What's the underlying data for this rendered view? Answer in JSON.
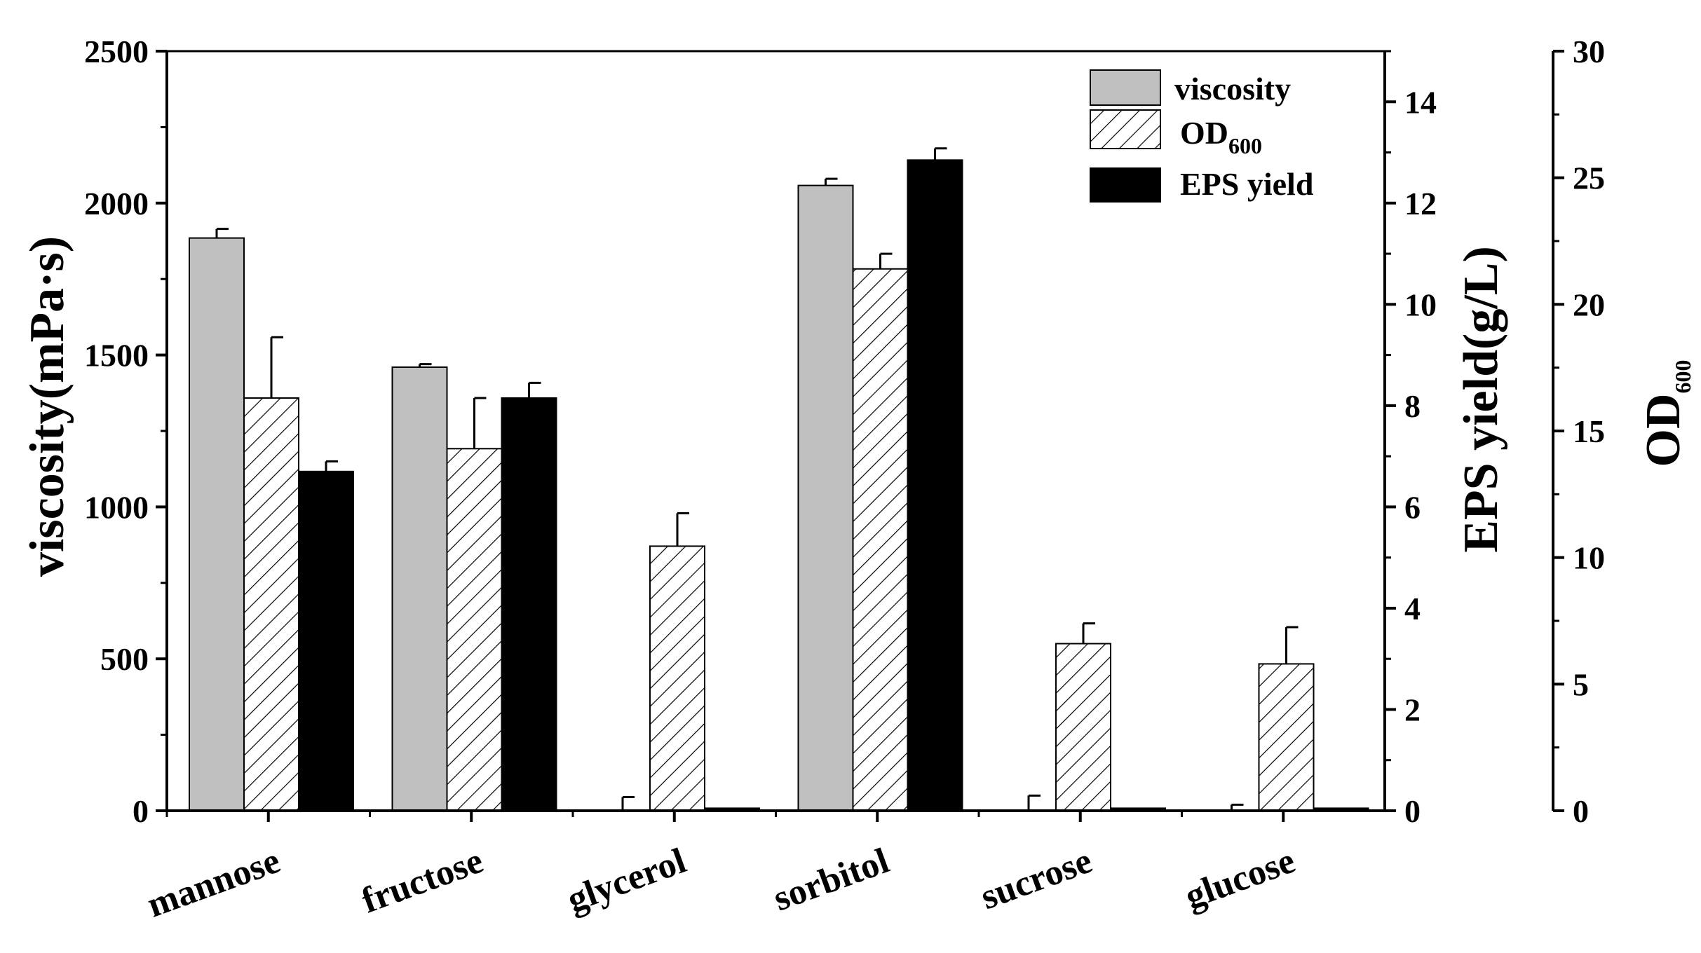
{
  "chart_data": {
    "type": "bar",
    "title": "",
    "categories": [
      "mannose",
      "fructose",
      "glycerol",
      "sorbitol",
      "sucrose",
      "glucose"
    ],
    "xlabel": "",
    "series": [
      {
        "name": "viscosity",
        "axis": "left",
        "fill": "gray",
        "values": [
          1885,
          1460,
          0,
          2058,
          0,
          0
        ],
        "errors": [
          30,
          10,
          45,
          22,
          50,
          20
        ]
      },
      {
        "name": "OD600",
        "axis": "right-outer",
        "fill": "hatched",
        "values": [
          16.3,
          14.3,
          10.45,
          21.4,
          6.6,
          5.8
        ],
        "errors": [
          2.4,
          2.0,
          1.3,
          0.6,
          0.8,
          1.45
        ]
      },
      {
        "name": "EPS yield",
        "axis": "right-inner",
        "fill": "black",
        "values": [
          6.7,
          8.15,
          0.05,
          12.85,
          0.05,
          0.05
        ],
        "errors": [
          0.2,
          0.3,
          0,
          0.23,
          0,
          0
        ]
      }
    ],
    "axes": {
      "left": {
        "label": "viscosity(mPa·s)",
        "min": 0,
        "max": 2500,
        "ticks": [
          0,
          500,
          1000,
          1500,
          2000,
          2500
        ],
        "tick_labels": [
          "0",
          "500",
          "1000",
          "1500",
          "2000",
          "2500"
        ]
      },
      "right_inner": {
        "label": "EPS yield(g/L)",
        "min": 0,
        "max": 15,
        "ticks": [
          0,
          2,
          4,
          6,
          8,
          10,
          12,
          14
        ],
        "tick_labels": [
          "0",
          "2",
          "4",
          "6",
          "8",
          "10",
          "12",
          "14"
        ]
      },
      "right_outer": {
        "label_main": "OD",
        "label_sub": "600",
        "min": 0,
        "max": 30,
        "ticks": [
          0,
          5,
          10,
          15,
          20,
          25,
          30
        ],
        "tick_labels": [
          "0",
          "5",
          "10",
          "15",
          "20",
          "25",
          "30"
        ]
      }
    },
    "legend": {
      "position": "top-right",
      "items": [
        {
          "label": "viscosity",
          "sub": ""
        },
        {
          "label": "OD",
          "sub": "600"
        },
        {
          "label": "EPS yield",
          "sub": ""
        }
      ]
    },
    "colors": {
      "viscosity": "#c0c0c0",
      "hatch": "#000000",
      "eps": "#000000",
      "axis": "#000000"
    }
  }
}
